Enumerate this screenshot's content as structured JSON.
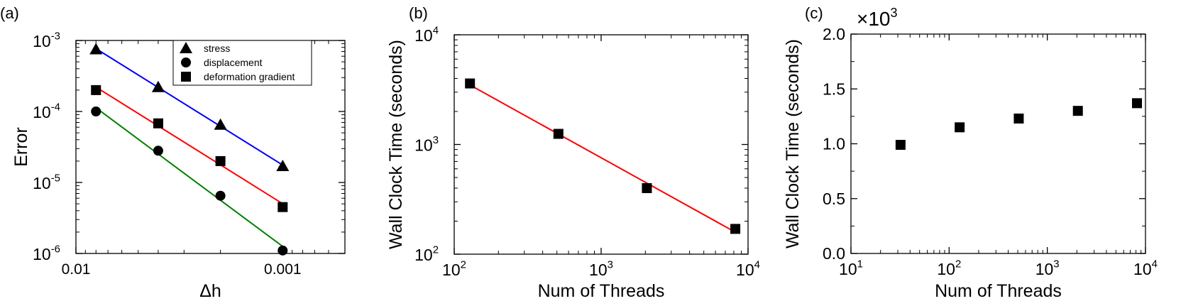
{
  "chart_data": [
    {
      "panel_label": "(a)",
      "type": "scatter",
      "xscale": "log",
      "yscale": "log",
      "xlim": [
        0.01,
        0.0005
      ],
      "x_reversed": true,
      "ylim": [
        1e-06,
        0.001
      ],
      "xlabel": "Δh",
      "ylabel": "Error",
      "xticks": [
        {
          "v": 0.01,
          "label": "0.01"
        },
        {
          "v": 0.001,
          "label": "0.001"
        }
      ],
      "yticks": [
        {
          "v": 0.001,
          "base": "10",
          "exp": "-3"
        },
        {
          "v": 0.0001,
          "base": "10",
          "exp": "-4"
        },
        {
          "v": 1e-05,
          "base": "10",
          "exp": "-5"
        },
        {
          "v": 1e-06,
          "base": "10",
          "exp": "-6"
        }
      ],
      "legend_position": "top-right",
      "series": [
        {
          "name": "stress",
          "marker": "triangle",
          "line_color": "#0000ff",
          "x": [
            0.008,
            0.004,
            0.002,
            0.001
          ],
          "y": [
            0.00075,
            0.00022,
            6.5e-05,
            1.7e-05
          ]
        },
        {
          "name": "displacement",
          "marker": "circle",
          "line_color": "#008000",
          "x": [
            0.008,
            0.004,
            0.002,
            0.001
          ],
          "y": [
            0.0001,
            2.8e-05,
            6.5e-06,
            1.1e-06
          ]
        },
        {
          "name": "deformation gradient",
          "marker": "square",
          "line_color": "#ff0000",
          "x": [
            0.008,
            0.004,
            0.002,
            0.001
          ],
          "y": [
            0.0002,
            6.8e-05,
            2e-05,
            4.5e-06
          ]
        }
      ]
    },
    {
      "panel_label": "(b)",
      "type": "scatter",
      "xscale": "log",
      "yscale": "log",
      "xlim": [
        100,
        10000
      ],
      "ylim": [
        100,
        10000
      ],
      "xlabel": "Num of Threads",
      "ylabel": "Wall Clock Time (seconds)",
      "xticks": [
        {
          "v": 100,
          "base": "10",
          "exp": "2"
        },
        {
          "v": 1000,
          "base": "10",
          "exp": "3"
        },
        {
          "v": 10000,
          "base": "10",
          "exp": "4"
        }
      ],
      "yticks": [
        {
          "v": 100,
          "base": "10",
          "exp": "2"
        },
        {
          "v": 1000,
          "base": "10",
          "exp": "3"
        },
        {
          "v": 10000,
          "base": "10",
          "exp": "4"
        }
      ],
      "series": [
        {
          "marker": "square",
          "line_color": "#ff0000",
          "x": [
            128,
            512,
            2048,
            8192
          ],
          "y": [
            3600,
            1250,
            400,
            170
          ]
        }
      ]
    },
    {
      "panel_label": "(c)",
      "type": "scatter",
      "xscale": "log",
      "yscale": "linear",
      "xlim": [
        10,
        10000
      ],
      "ylim": [
        0,
        2.0
      ],
      "y_multiplier_base": "×10",
      "y_multiplier_exp": "3",
      "xlabel": "Num of Threads",
      "ylabel": "Wall Clock Time (seconds)",
      "xticks": [
        {
          "v": 10,
          "base": "10",
          "exp": "1"
        },
        {
          "v": 100,
          "base": "10",
          "exp": "2"
        },
        {
          "v": 1000,
          "base": "10",
          "exp": "3"
        },
        {
          "v": 10000,
          "base": "10",
          "exp": "4"
        }
      ],
      "yticks": [
        {
          "v": 0,
          "label": "0.0"
        },
        {
          "v": 0.5,
          "label": "0.5"
        },
        {
          "v": 1.0,
          "label": "1.0"
        },
        {
          "v": 1.5,
          "label": "1.5"
        },
        {
          "v": 2.0,
          "label": "2.0"
        }
      ],
      "series": [
        {
          "marker": "square",
          "x": [
            32,
            128,
            512,
            2048,
            8192
          ],
          "y": [
            0.99,
            1.15,
            1.23,
            1.3,
            1.37
          ]
        }
      ]
    }
  ]
}
